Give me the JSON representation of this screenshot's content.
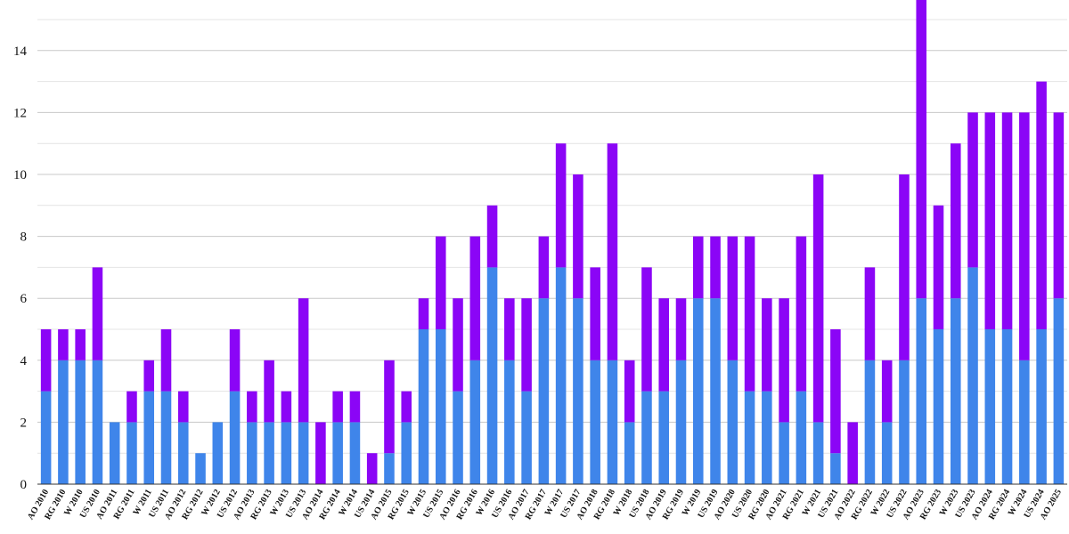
{
  "chart_data": {
    "type": "bar",
    "stacked": true,
    "title": "",
    "xlabel": "",
    "ylabel": "",
    "ylim": [
      0,
      15
    ],
    "yticks": [
      0,
      2,
      4,
      6,
      8,
      10,
      12,
      14
    ],
    "grid": true,
    "legend": "none",
    "categories": [
      "AO 2010",
      "RG 2010",
      "W 2010",
      "US 2010",
      "AO 2011",
      "RG 2011",
      "W 2011",
      "US 2011",
      "AO 2012",
      "RG 2012",
      "W 2012",
      "US 2012",
      "AO 2013",
      "RG 2013",
      "W 2013",
      "US 2013",
      "AO 2014",
      "RG 2014",
      "W 2014",
      "US 2014",
      "AO 2015",
      "RG 2015",
      "W 2015",
      "US 2015",
      "AO 2016",
      "RG 2016",
      "W 2016",
      "US 2016",
      "AO 2017",
      "RG 2017",
      "W 2017",
      "US 2017",
      "AO 2018",
      "RG 2018",
      "W 2018",
      "US 2018",
      "AO 2019",
      "RG 2019",
      "W 2019",
      "US 2019",
      "AO 2020",
      "US 2020",
      "RG 2020",
      "AO 2021",
      "RG 2021",
      "W 2021",
      "US 2021",
      "AO 2022",
      "RG 2022",
      "W 2022",
      "US 2022",
      "AO 2023",
      "RG 2023",
      "W 2023",
      "US 2023",
      "AO 2024",
      "RG 2024",
      "W 2024",
      "US 2024",
      "AO 2025"
    ],
    "series": [
      {
        "color": "#3f85ea",
        "values": [
          3,
          4,
          4,
          4,
          2,
          2,
          3,
          3,
          2,
          1,
          2,
          3,
          2,
          2,
          2,
          2,
          0,
          2,
          2,
          0,
          1,
          2,
          5,
          5,
          3,
          4,
          7,
          4,
          3,
          6,
          7,
          6,
          4,
          4,
          2,
          3,
          3,
          4,
          6,
          6,
          4,
          3,
          3,
          2,
          3,
          2,
          1,
          0,
          4,
          2,
          4,
          6,
          5,
          6,
          7,
          5,
          5,
          4,
          5,
          6
        ]
      },
      {
        "color": "#8b05f6",
        "values": [
          2,
          1,
          1,
          3,
          0,
          1,
          1,
          2,
          1,
          0,
          0,
          2,
          1,
          2,
          1,
          4,
          2,
          1,
          1,
          1,
          3,
          1,
          1,
          3,
          3,
          4,
          2,
          2,
          3,
          2,
          4,
          4,
          3,
          7,
          2,
          4,
          3,
          2,
          2,
          2,
          4,
          5,
          3,
          4,
          5,
          8,
          4,
          2,
          3,
          2,
          6,
          10,
          4,
          5,
          5,
          7,
          7,
          8,
          8,
          6
        ]
      }
    ]
  }
}
